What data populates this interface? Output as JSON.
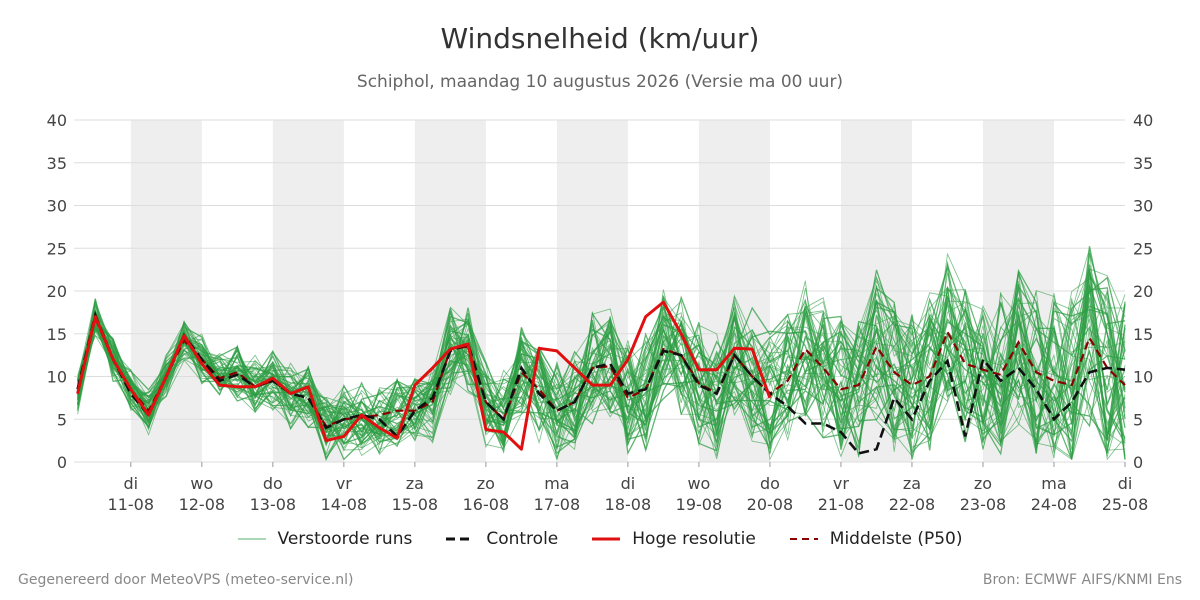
{
  "footer": {
    "generated_by": "Gegenereerd door MeteoVPS (meteo-service.nl)",
    "source": "Bron: ECMWF AIFS/KNMI Ens"
  },
  "legend": {
    "ensemble": "Verstoorde runs",
    "control": "Controle",
    "high_res": "Hoge resolutie",
    "median": "Middelste (P50)"
  },
  "colors": {
    "ensemble": "#2e9e44",
    "control": "#111111",
    "high_res": "#e01010",
    "median": "#8b0000",
    "weekend_band": "#eeeeee",
    "grid": "#dddddd"
  },
  "chart_data": {
    "type": "line",
    "title": "Windsnelheid (km/uur)",
    "subtitle": "Schiphol, maandag 10 augustus 2026 (Versie ma 00 uur)",
    "ylim": [
      0,
      40
    ],
    "yticks": [
      0,
      5,
      10,
      15,
      20,
      25,
      30,
      35,
      40
    ],
    "xlim_days": [
      -0.8,
      14.0
    ],
    "x_ticks": [
      {
        "day": "di",
        "date": "11-08"
      },
      {
        "day": "wo",
        "date": "12-08"
      },
      {
        "day": "do",
        "date": "13-08"
      },
      {
        "day": "vr",
        "date": "14-08"
      },
      {
        "day": "za",
        "date": "15-08"
      },
      {
        "day": "zo",
        "date": "16-08"
      },
      {
        "day": "ma",
        "date": "17-08"
      },
      {
        "day": "di",
        "date": "18-08"
      },
      {
        "day": "wo",
        "date": "19-08"
      },
      {
        "day": "do",
        "date": "20-08"
      },
      {
        "day": "vr",
        "date": "21-08"
      },
      {
        "day": "za",
        "date": "22-08"
      },
      {
        "day": "zo",
        "date": "23-08"
      },
      {
        "day": "ma",
        "date": "24-08"
      },
      {
        "day": "di",
        "date": "25-08"
      }
    ],
    "shaded_bands": [
      [
        0,
        1
      ],
      [
        2,
        3
      ],
      [
        4,
        5
      ],
      [
        6,
        7
      ],
      [
        8,
        9
      ],
      [
        10,
        11
      ],
      [
        12,
        13
      ]
    ],
    "grid": true,
    "legend_position": "bottom",
    "x": [
      -0.75,
      -0.5,
      -0.25,
      0,
      0.25,
      0.5,
      0.75,
      1,
      1.25,
      1.5,
      1.75,
      2,
      2.25,
      2.5,
      2.75,
      3,
      3.25,
      3.5,
      3.75,
      4,
      4.25,
      4.5,
      4.75,
      5,
      5.25,
      5.5,
      5.75,
      6,
      6.25,
      6.5,
      6.75,
      7,
      7.25,
      7.5,
      7.75,
      8,
      8.25,
      8.5,
      8.75,
      9,
      9.25,
      9.5,
      9.75,
      10,
      10.25,
      10.5,
      10.75,
      11,
      11.25,
      11.5,
      11.75,
      12,
      12.25,
      12.5,
      12.75,
      13,
      13.25,
      13.5,
      13.75,
      14
    ],
    "control": [
      8.5,
      17.2,
      12.0,
      8.0,
      5.5,
      10.0,
      14.8,
      12.0,
      9.5,
      10.2,
      8.8,
      9.5,
      8.0,
      7.5,
      4.0,
      5.0,
      5.5,
      5.0,
      3.0,
      6.0,
      7.5,
      13.0,
      13.8,
      7.0,
      5.0,
      11.0,
      8.0,
      6.0,
      7.0,
      11.0,
      11.5,
      8.0,
      8.5,
      13.0,
      12.5,
      9.0,
      8.0,
      12.5,
      10.0,
      8.0,
      6.5,
      4.5,
      4.5,
      3.5,
      1.0,
      1.5,
      7.5,
      5.0,
      9.5,
      11.8,
      3.0,
      12.0,
      9.5,
      11.0,
      8.5,
      5.0,
      7.0,
      10.5,
      11.0,
      10.8
    ],
    "high_res": [
      8.0,
      17.0,
      12.0,
      8.5,
      5.5,
      10.0,
      14.8,
      11.5,
      9.0,
      8.8,
      8.8,
      9.8,
      8.0,
      8.8,
      2.5,
      3.0,
      5.5,
      4.0,
      2.8,
      9.0,
      11.0,
      13.2,
      13.8,
      3.8,
      3.5,
      1.5,
      13.3,
      13.0,
      11.0,
      9.0,
      9.0,
      12.0,
      17.0,
      18.7,
      15.0,
      10.8,
      10.8,
      13.3,
      13.2,
      7.5,
      null,
      null,
      null,
      null,
      null,
      null,
      null,
      null,
      null,
      null,
      null,
      null,
      null,
      null,
      null,
      null,
      null,
      null,
      null,
      null
    ],
    "median": [
      8.0,
      16.8,
      12.0,
      8.5,
      6.0,
      10.0,
      14.2,
      12.0,
      9.8,
      10.5,
      8.8,
      9.5,
      8.0,
      7.5,
      4.2,
      5.0,
      5.2,
      5.5,
      6.0,
      6.0,
      7.0,
      13.2,
      13.5,
      7.0,
      5.0,
      10.5,
      8.5,
      6.0,
      7.0,
      11.0,
      11.2,
      7.5,
      8.5,
      13.2,
      12.5,
      9.2,
      8.0,
      12.5,
      10.0,
      8.0,
      9.5,
      13.2,
      11.0,
      8.5,
      9.0,
      13.5,
      10.5,
      9.0,
      10.0,
      15.2,
      11.5,
      10.8,
      10.2,
      14.0,
      10.5,
      9.5,
      9.0,
      14.5,
      11.0,
      9.0
    ],
    "series_count_ensemble": 50
  }
}
